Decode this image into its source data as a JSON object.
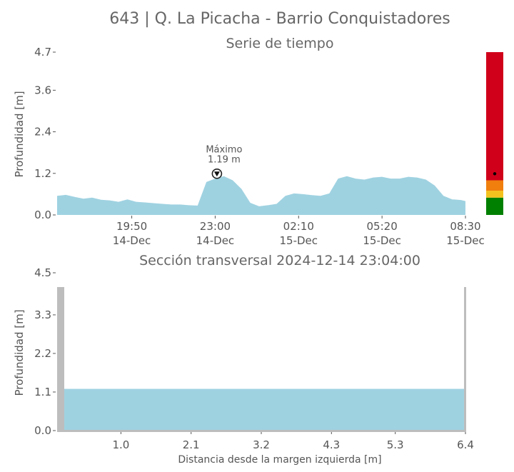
{
  "header": {
    "title": "643 | Q. La Picacha - Barrio Conquistadores"
  },
  "chart_data": [
    {
      "type": "area",
      "title": "Serie de tiempo",
      "ylabel": "Profundidad [m]",
      "ylim": [
        0.0,
        4.7
      ],
      "yticks": [
        "0.0",
        "1.2",
        "2.4",
        "3.6",
        "4.7"
      ],
      "xticks": [
        {
          "time": "19:50",
          "date": "14-Dec"
        },
        {
          "time": "23:00",
          "date": "14-Dec"
        },
        {
          "time": "02:10",
          "date": "15-Dec"
        },
        {
          "time": "05:20",
          "date": "15-Dec"
        },
        {
          "time": "08:30",
          "date": "15-Dec"
        }
      ],
      "x_start": "2024-12-14 17:00",
      "x_end": "2024-12-15 08:30",
      "series": [
        {
          "color": "#9fd2e1",
          "x": [
            "2024-12-14 17:00",
            "2024-12-14 17:20",
            "2024-12-14 17:40",
            "2024-12-14 18:00",
            "2024-12-14 18:20",
            "2024-12-14 18:40",
            "2024-12-14 19:00",
            "2024-12-14 19:20",
            "2024-12-14 19:40",
            "2024-12-14 20:00",
            "2024-12-14 20:20",
            "2024-12-14 20:40",
            "2024-12-14 21:00",
            "2024-12-14 21:20",
            "2024-12-14 21:40",
            "2024-12-14 22:00",
            "2024-12-14 22:20",
            "2024-12-14 22:40",
            "2024-12-14 23:00",
            "2024-12-14 23:20",
            "2024-12-14 23:40",
            "2024-12-15 00:00",
            "2024-12-15 00:20",
            "2024-12-15 00:40",
            "2024-12-15 01:00",
            "2024-12-15 01:20",
            "2024-12-15 01:40",
            "2024-12-15 02:00",
            "2024-12-15 02:20",
            "2024-12-15 02:40",
            "2024-12-15 03:00",
            "2024-12-15 03:20",
            "2024-12-15 03:40",
            "2024-12-15 04:00",
            "2024-12-15 04:20",
            "2024-12-15 04:40",
            "2024-12-15 05:00",
            "2024-12-15 05:20",
            "2024-12-15 05:40",
            "2024-12-15 06:00",
            "2024-12-15 06:20",
            "2024-12-15 06:40",
            "2024-12-15 07:00",
            "2024-12-15 07:20",
            "2024-12-15 07:40",
            "2024-12-15 08:00",
            "2024-12-15 08:20",
            "2024-12-15 08:30"
          ],
          "values": [
            0.55,
            0.58,
            0.52,
            0.47,
            0.5,
            0.44,
            0.42,
            0.38,
            0.45,
            0.38,
            0.36,
            0.34,
            0.32,
            0.3,
            0.3,
            0.28,
            0.27,
            0.95,
            1.05,
            1.12,
            1.0,
            0.75,
            0.35,
            0.25,
            0.28,
            0.32,
            0.55,
            0.62,
            0.6,
            0.57,
            0.55,
            0.62,
            1.05,
            1.12,
            1.05,
            1.02,
            1.08,
            1.1,
            1.05,
            1.05,
            1.1,
            1.08,
            1.02,
            0.85,
            0.55,
            0.45,
            0.43,
            0.4
          ]
        }
      ],
      "annotation": {
        "label": "Máximo",
        "value_text": "1.19 m",
        "time": "2024-12-14 23:04",
        "value": 1.19
      },
      "threshold_bar": {
        "levels": [
          {
            "color": "#008000",
            "from": 0.0,
            "to": 0.5
          },
          {
            "color": "#f4c21f",
            "from": 0.5,
            "to": 0.7
          },
          {
            "color": "#f07f0e",
            "from": 0.7,
            "to": 1.0
          },
          {
            "color": "#d0001a",
            "from": 1.0,
            "to": 4.7
          }
        ],
        "current_value": 1.19
      }
    },
    {
      "type": "area",
      "title": "Sección transversal 2024-12-14 23:04:00",
      "xlabel": "Distancia desde la margen izquierda [m]",
      "ylabel": "Profundidad [m]",
      "ylim": [
        0.0,
        4.5
      ],
      "xlim": [
        0.0,
        6.4
      ],
      "yticks": [
        "0.0",
        "1.1",
        "2.2",
        "3.3",
        "4.5"
      ],
      "xticks": [
        "1.0",
        "2.1",
        "3.2",
        "4.3",
        "5.3",
        "6.4"
      ],
      "water_depth": 1.19,
      "bank_height": 4.5
    }
  ]
}
